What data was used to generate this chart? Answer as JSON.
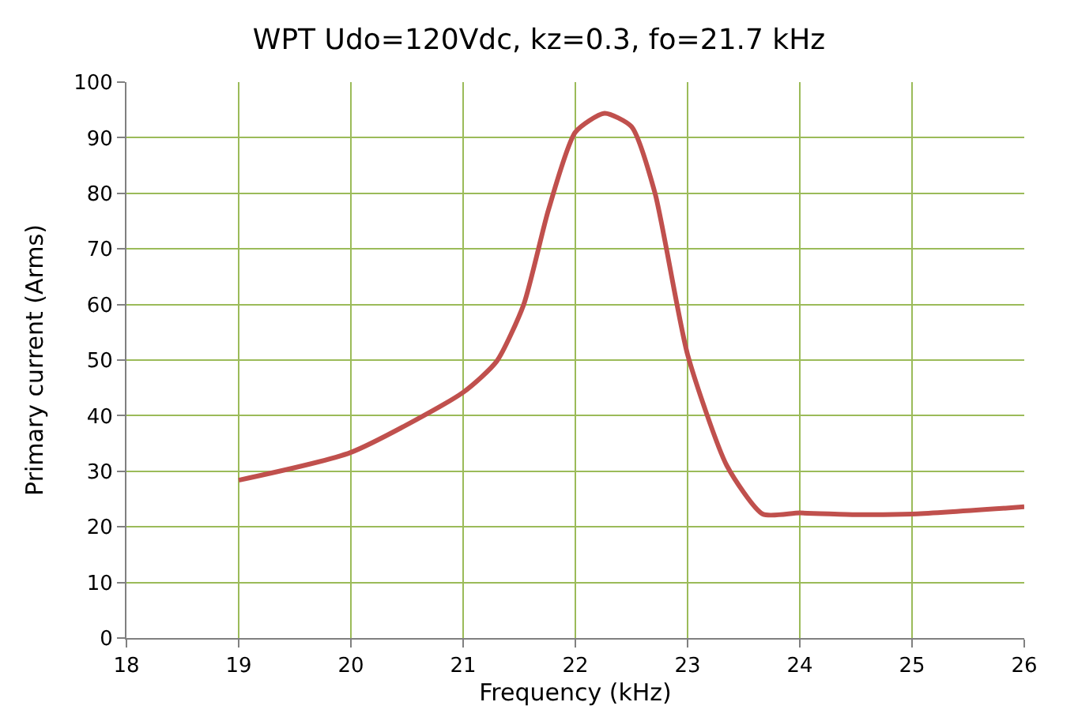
{
  "chart_data": {
    "type": "line",
    "title": "WPT Udo=120Vdc, kz=0.3, fo=21.7 kHz",
    "xlabel": "Frequency (kHz)",
    "ylabel": "Primary current (Arms)",
    "x": [
      19,
      20,
      21,
      21.3,
      21.54,
      21.76,
      22,
      22.26,
      22.5,
      22.71,
      23,
      23.35,
      23.67,
      24,
      24.5,
      25,
      26
    ],
    "series": [
      {
        "color": "#c0504d",
        "values": [
          28.4,
          33.4,
          44.2,
          49.8,
          60,
          77,
          91,
          94.4,
          92,
          80,
          51,
          31,
          22.3,
          22.5,
          22.2,
          22.3,
          23.6
        ]
      }
    ],
    "xlim": [
      18,
      26
    ],
    "xticks": [
      18,
      19,
      20,
      21,
      22,
      23,
      24,
      25,
      26
    ],
    "ylim": [
      0,
      100
    ],
    "yticks": [
      0,
      10,
      20,
      30,
      40,
      50,
      60,
      70,
      80,
      90,
      100
    ],
    "grid": true,
    "marker": "none",
    "line_style": "solid"
  }
}
